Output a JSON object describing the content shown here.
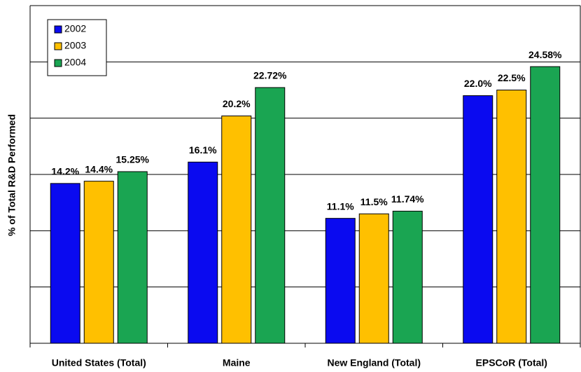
{
  "chart_data": {
    "type": "bar",
    "y_label": "% of Total R&D Performed",
    "categories": [
      "United States (Total)",
      "Maine",
      "New England (Total)",
      "EPSCoR (Total)"
    ],
    "series": [
      {
        "name": "2002",
        "color": "#0a0af0",
        "values": [
          14.2,
          16.1,
          11.1,
          22
        ],
        "value_labels": [
          "14.2%",
          "16.1%",
          "11.1%",
          "22.0%"
        ]
      },
      {
        "name": "2003",
        "color": "#ffc000",
        "values": [
          14.4,
          20.2,
          11.5,
          22.5
        ],
        "value_labels": [
          "14.4%",
          "20.2%",
          "11.5%",
          "22.5%"
        ]
      },
      {
        "name": "2004",
        "color": "#1aa552",
        "values": [
          15.25,
          22.72,
          11.74,
          24.58
        ],
        "value_labels": [
          "15.25%",
          "22.72%",
          "11.74%",
          "24.58%"
        ]
      }
    ],
    "ylim": [
      0,
      30
    ],
    "yticks": [
      0,
      5,
      10,
      15,
      20,
      25,
      30
    ],
    "grid": true,
    "legend": "top-left"
  }
}
